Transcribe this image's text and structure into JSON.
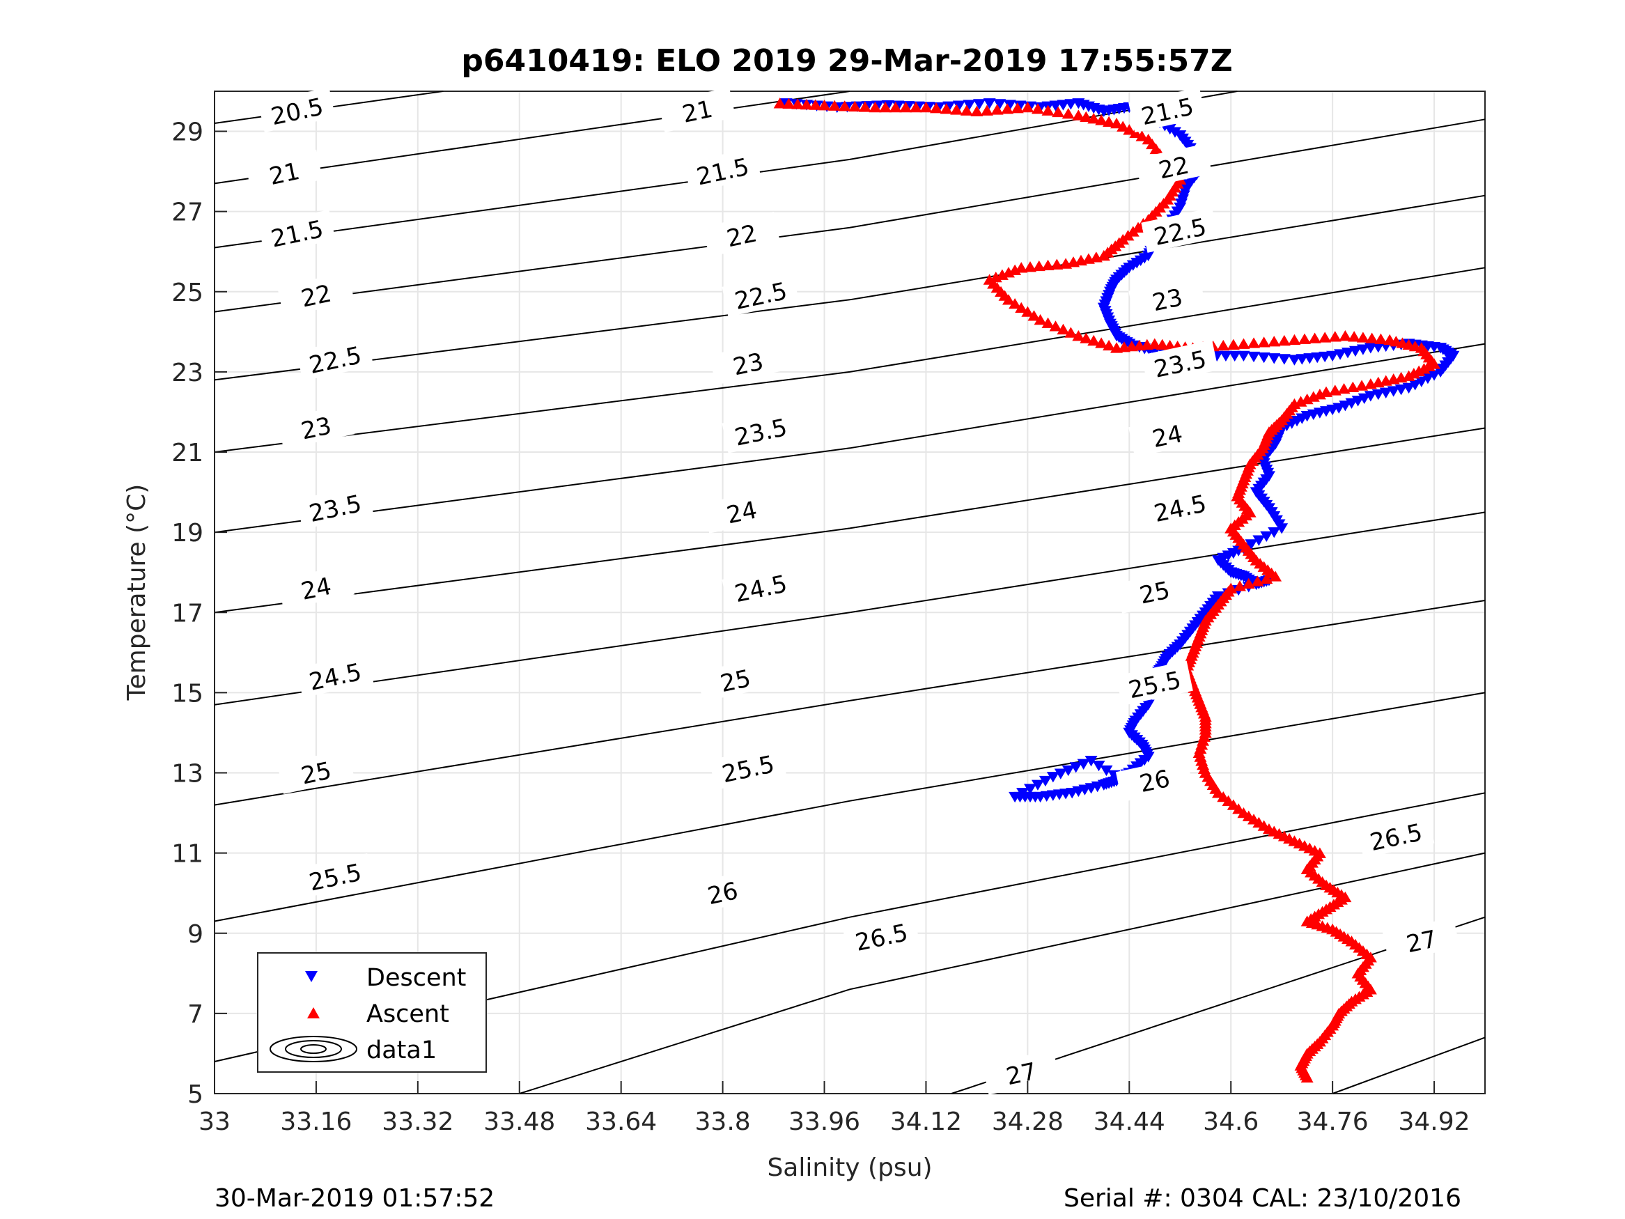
{
  "chart_data": {
    "type": "scatter",
    "title": "p6410419: ELO 2019 29-Mar-2019 17:55:57Z",
    "xlabel": "Salinity (psu)",
    "ylabel": "Temperature (°C)",
    "xlim": [
      33,
      35.0
    ],
    "ylim": [
      5,
      30
    ],
    "xticks": [
      "33",
      "33.16",
      "33.32",
      "33.48",
      "33.64",
      "33.8",
      "33.96",
      "34.12",
      "34.28",
      "34.44",
      "34.6",
      "34.76",
      "34.92"
    ],
    "yticks": [
      "5",
      "7",
      "9",
      "11",
      "13",
      "15",
      "17",
      "19",
      "21",
      "23",
      "25",
      "27",
      "29"
    ],
    "grid": true,
    "legend_position": "bottom-left",
    "legend": [
      "Descent",
      "Ascent",
      "data1"
    ],
    "footer_left": "30-Mar-2019 01:57:52",
    "footer_right": "Serial #: 0304  CAL: 23/10/2016",
    "colors": {
      "descent": "#0000ff",
      "ascent": "#ff0000",
      "contour": "#000000",
      "grid": "#e6e6e6"
    },
    "contours": [
      {
        "level": "20.5",
        "line": [
          [
            33.0,
            29.2
          ],
          [
            33.36,
            30.0
          ]
        ],
        "labels": [
          [
            33.13,
            29.5
          ]
        ]
      },
      {
        "level": "21",
        "line": [
          [
            33.0,
            27.7
          ],
          [
            34.0,
            30.0
          ]
        ],
        "labels": [
          [
            33.11,
            27.95
          ],
          [
            33.76,
            29.5
          ]
        ]
      },
      {
        "level": "21.5",
        "line": [
          [
            33.0,
            26.1
          ],
          [
            34.0,
            28.3
          ],
          [
            34.61,
            30.0
          ]
        ],
        "labels": [
          [
            33.13,
            26.45
          ],
          [
            33.8,
            28.0
          ],
          [
            34.5,
            29.5
          ]
        ]
      },
      {
        "level": "22",
        "line": [
          [
            33.0,
            24.5
          ],
          [
            34.0,
            26.6
          ],
          [
            35.0,
            29.3
          ]
        ],
        "labels": [
          [
            33.16,
            24.9
          ],
          [
            33.83,
            26.4
          ],
          [
            34.51,
            28.1
          ]
        ]
      },
      {
        "level": "22.5",
        "line": [
          [
            33.0,
            22.8
          ],
          [
            34.0,
            24.8
          ],
          [
            35.0,
            27.4
          ]
        ],
        "labels": [
          [
            33.19,
            23.3
          ],
          [
            33.86,
            24.9
          ],
          [
            34.52,
            26.5
          ]
        ]
      },
      {
        "level": "23",
        "line": [
          [
            33.0,
            21.0
          ],
          [
            34.0,
            23.0
          ],
          [
            35.0,
            25.6
          ]
        ],
        "labels": [
          [
            33.16,
            21.6
          ],
          [
            33.84,
            23.2
          ],
          [
            34.5,
            24.8
          ]
        ]
      },
      {
        "level": "23.5",
        "line": [
          [
            33.0,
            19.0
          ],
          [
            34.0,
            21.1
          ],
          [
            35.0,
            23.7
          ]
        ],
        "labels": [
          [
            33.19,
            19.6
          ],
          [
            33.86,
            21.5
          ],
          [
            34.52,
            23.2
          ]
        ]
      },
      {
        "level": "24",
        "line": [
          [
            33.0,
            17.0
          ],
          [
            34.0,
            19.1
          ],
          [
            35.0,
            21.6
          ]
        ],
        "labels": [
          [
            33.16,
            17.6
          ],
          [
            33.83,
            19.5
          ],
          [
            34.5,
            21.4
          ]
        ]
      },
      {
        "level": "24.5",
        "line": [
          [
            33.0,
            14.7
          ],
          [
            34.0,
            17.0
          ],
          [
            35.0,
            19.5
          ]
        ],
        "labels": [
          [
            33.19,
            15.4
          ],
          [
            33.86,
            17.6
          ],
          [
            34.52,
            19.6
          ]
        ]
      },
      {
        "level": "25",
        "line": [
          [
            33.0,
            12.2
          ],
          [
            34.0,
            14.8
          ],
          [
            35.0,
            17.3
          ]
        ],
        "labels": [
          [
            33.16,
            13.0
          ],
          [
            33.82,
            15.3
          ],
          [
            34.48,
            17.5
          ]
        ]
      },
      {
        "level": "25.5",
        "line": [
          [
            33.0,
            9.3
          ],
          [
            34.0,
            12.3
          ],
          [
            35.0,
            15.0
          ]
        ],
        "labels": [
          [
            33.19,
            10.4
          ],
          [
            33.84,
            13.1
          ],
          [
            34.48,
            15.2
          ]
        ]
      },
      {
        "level": "26",
        "line": [
          [
            33.0,
            5.8
          ],
          [
            34.0,
            9.4
          ],
          [
            35.0,
            12.5
          ]
        ],
        "labels": [
          [
            33.16,
            6.8
          ],
          [
            33.8,
            10.0
          ],
          [
            34.48,
            12.8
          ]
        ]
      },
      {
        "level": "26.5",
        "line": [
          [
            33.48,
            5.0
          ],
          [
            34.0,
            7.6
          ],
          [
            35.0,
            11.0
          ]
        ],
        "labels": [
          [
            34.05,
            8.9
          ],
          [
            34.86,
            11.4
          ]
        ]
      },
      {
        "level": "27",
        "line": [
          [
            34.16,
            5.0
          ],
          [
            35.0,
            9.4
          ]
        ],
        "labels": [
          [
            34.27,
            5.5
          ],
          [
            34.9,
            8.8
          ]
        ]
      },
      {
        "level": "",
        "line": [
          [
            34.76,
            5.0
          ],
          [
            35.0,
            6.4
          ]
        ],
        "labels": []
      }
    ],
    "series": [
      {
        "name": "Descent",
        "marker": "triangle-down",
        "color": "#0000ff",
        "x": [
          33.9,
          33.98,
          34.06,
          34.14,
          34.22,
          34.3,
          34.36,
          34.4,
          34.44,
          34.48,
          34.52,
          34.54,
          34.55,
          34.53,
          34.52,
          34.5,
          34.48,
          34.47,
          34.44,
          34.42,
          34.41,
          34.4,
          34.41,
          34.42,
          34.44,
          34.48,
          34.55,
          34.62,
          34.7,
          34.76,
          34.82,
          34.88,
          34.93,
          34.95,
          34.93,
          34.88,
          34.82,
          34.77,
          34.72,
          34.68,
          34.67,
          34.65,
          34.66,
          34.64,
          34.66,
          34.68,
          34.62,
          34.58,
          34.6,
          34.62,
          34.64,
          34.66,
          34.58,
          34.56,
          34.54,
          34.52,
          34.5,
          34.49,
          34.48,
          34.46,
          34.47,
          34.45,
          34.44,
          34.46,
          34.47,
          34.44,
          34.42,
          34.4,
          34.35,
          34.3,
          34.26,
          34.32,
          34.38,
          34.44,
          34.48
        ],
        "y": [
          29.7,
          29.6,
          29.65,
          29.6,
          29.7,
          29.6,
          29.7,
          29.5,
          29.6,
          29.3,
          28.9,
          28.5,
          28.0,
          27.6,
          27.1,
          26.6,
          26.2,
          25.9,
          25.6,
          25.3,
          25.0,
          24.6,
          24.2,
          23.9,
          23.7,
          23.5,
          23.4,
          23.4,
          23.3,
          23.4,
          23.6,
          23.7,
          23.6,
          23.4,
          23.0,
          22.6,
          22.4,
          22.1,
          21.9,
          21.6,
          21.2,
          20.8,
          20.4,
          20.0,
          19.6,
          19.1,
          18.6,
          18.3,
          18.0,
          17.9,
          17.7,
          17.8,
          17.4,
          17.0,
          16.6,
          16.2,
          15.9,
          15.6,
          15.4,
          15.0,
          14.7,
          14.3,
          14.0,
          13.7,
          13.4,
          13.0,
          12.8,
          12.7,
          12.5,
          12.4,
          12.4,
          12.9,
          13.3,
          12.7,
          12.7
        ]
      },
      {
        "name": "Ascent",
        "marker": "triangle-up",
        "color": "#ff0000",
        "x": [
          33.89,
          33.96,
          34.04,
          34.12,
          34.2,
          34.28,
          34.36,
          34.42,
          34.47,
          34.5,
          34.52,
          34.5,
          34.47,
          34.43,
          34.4,
          34.34,
          34.27,
          34.22,
          34.25,
          34.3,
          34.36,
          34.42,
          34.48,
          34.54,
          34.62,
          34.7,
          34.78,
          34.85,
          34.9,
          34.92,
          34.88,
          34.82,
          34.75,
          34.7,
          34.68,
          34.66,
          34.65,
          34.63,
          34.62,
          34.61,
          34.63,
          34.6,
          34.62,
          34.64,
          34.67,
          34.6,
          34.58,
          34.56,
          34.55,
          34.54,
          34.53,
          34.54,
          34.55,
          34.56,
          34.56,
          34.55,
          34.56,
          34.58,
          34.62,
          34.66,
          34.7,
          34.74,
          34.72,
          34.75,
          34.78,
          34.75,
          34.72,
          34.76,
          34.79,
          34.82,
          34.8,
          34.82,
          34.79,
          34.77,
          34.76,
          34.74,
          34.72,
          34.71,
          34.72
        ],
        "y": [
          29.7,
          29.65,
          29.6,
          29.6,
          29.5,
          29.6,
          29.4,
          29.2,
          28.8,
          28.2,
          27.8,
          27.3,
          26.8,
          26.3,
          25.9,
          25.7,
          25.6,
          25.3,
          24.8,
          24.3,
          23.9,
          23.6,
          23.7,
          23.6,
          23.7,
          23.8,
          23.9,
          23.8,
          23.6,
          23.2,
          22.9,
          22.7,
          22.5,
          22.2,
          21.8,
          21.5,
          21.1,
          20.7,
          20.3,
          19.9,
          19.5,
          19.1,
          18.7,
          18.3,
          17.9,
          17.6,
          17.2,
          16.8,
          16.4,
          16.0,
          15.6,
          15.2,
          14.8,
          14.4,
          14.0,
          13.5,
          13.0,
          12.5,
          12.0,
          11.6,
          11.3,
          11.0,
          10.6,
          10.2,
          9.9,
          9.6,
          9.3,
          9.1,
          8.8,
          8.4,
          8.0,
          7.6,
          7.3,
          7.0,
          6.7,
          6.3,
          6.0,
          5.7,
          5.4
        ]
      }
    ]
  }
}
